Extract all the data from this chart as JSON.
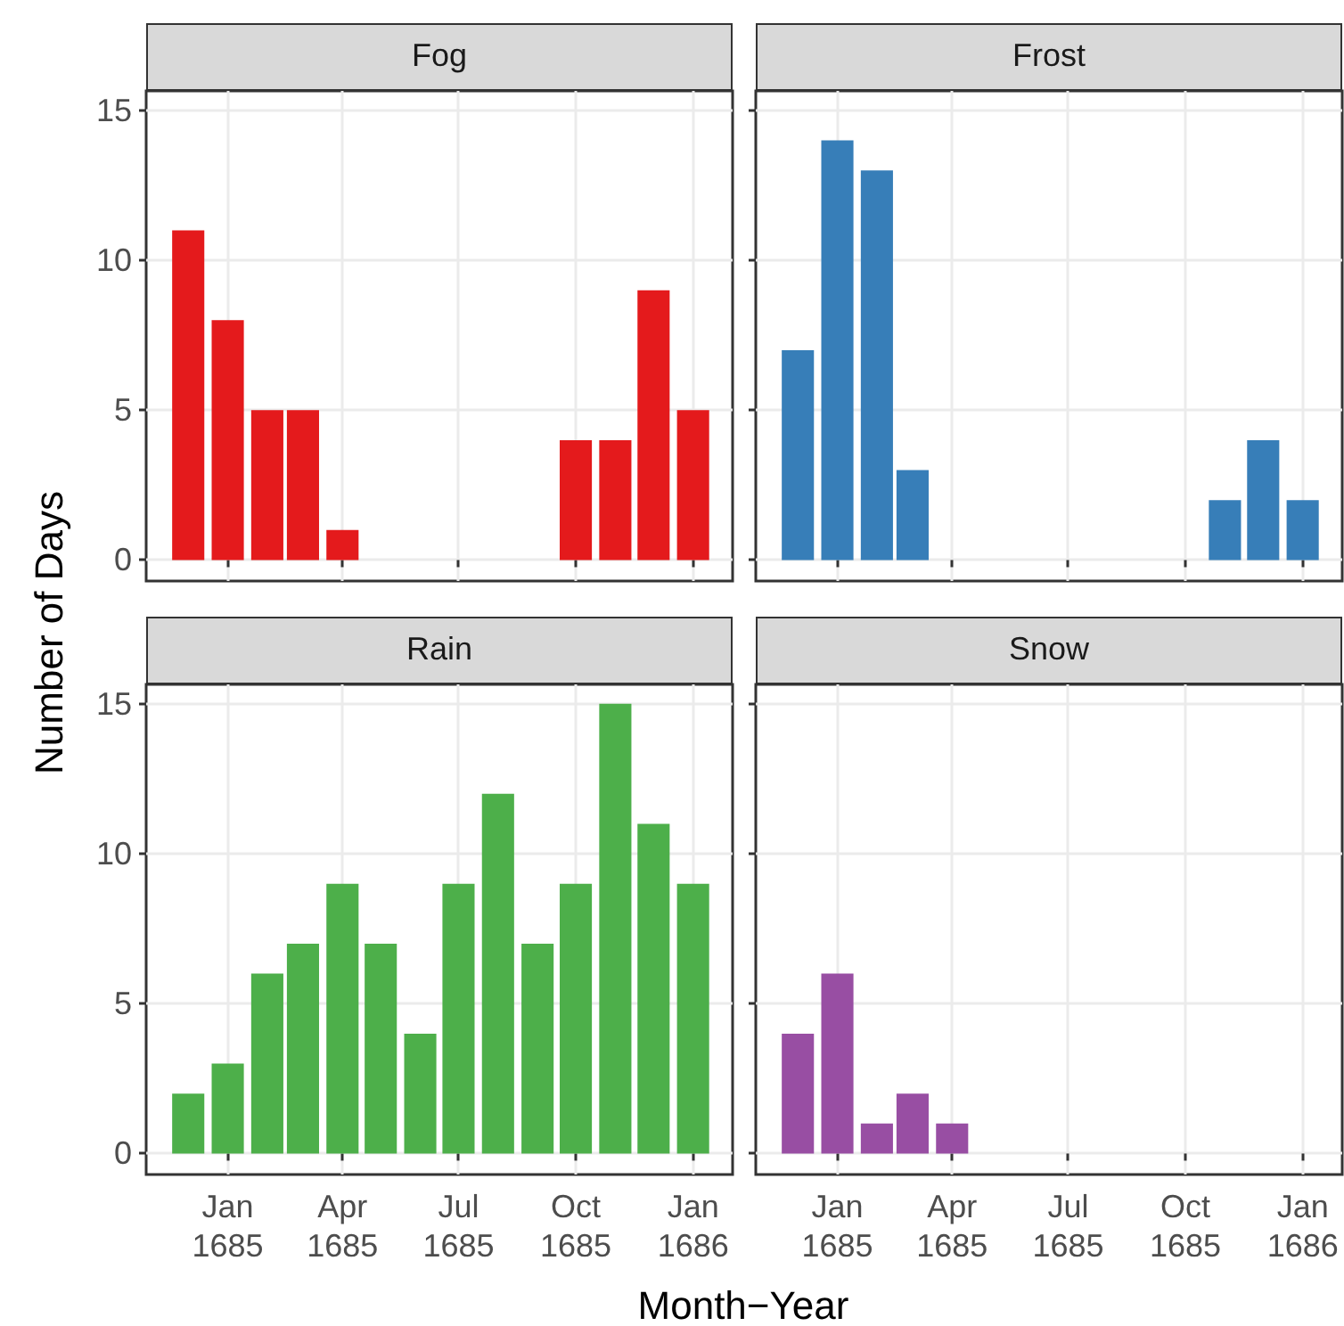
{
  "chart_data": [
    {
      "type": "bar",
      "title": "Fog",
      "xlabel": "Month−Year",
      "ylabel": "Number of Days",
      "x": [
        "1684-12-01",
        "1685-01-01",
        "1685-02-01",
        "1685-03-01",
        "1685-04-01",
        "1685-10-01",
        "1685-11-01",
        "1685-12-01",
        "1686-01-01"
      ],
      "values": [
        11,
        8,
        5,
        5,
        1,
        4,
        4,
        9,
        5
      ],
      "color": "#e41a1c",
      "xlim": [
        "1684-10-29",
        "1686-02-01"
      ],
      "xticks": [
        {
          "value": "1685-01-01",
          "label": null
        },
        {
          "value": "1685-04-01",
          "label": null
        },
        {
          "value": "1685-07-01",
          "label": null
        },
        {
          "value": "1685-10-01",
          "label": null
        },
        {
          "value": "1686-01-01",
          "label": null
        }
      ],
      "ylim": [
        -0.7,
        15.65
      ],
      "yticks": [
        0,
        5,
        10,
        15
      ],
      "grid": true,
      "tick_labels": "y"
    },
    {
      "type": "bar",
      "title": "Frost",
      "x": [
        "1684-12-01",
        "1685-01-01",
        "1685-02-01",
        "1685-03-01",
        "1685-11-01",
        "1685-12-01",
        "1686-01-01"
      ],
      "values": [
        7,
        14,
        13,
        3,
        2,
        4,
        2
      ],
      "color": "#377eb8",
      "xlim": [
        "1684-10-29",
        "1686-02-01"
      ],
      "xticks": [
        {
          "value": "1685-01-01",
          "label": null
        },
        {
          "value": "1685-04-01",
          "label": null
        },
        {
          "value": "1685-07-01",
          "label": null
        },
        {
          "value": "1685-10-01",
          "label": null
        },
        {
          "value": "1686-01-01",
          "label": null
        }
      ],
      "ylim": [
        -0.7,
        15.65
      ],
      "yticks": [
        0,
        5,
        10,
        15
      ],
      "grid": true,
      "tick_labels": false
    },
    {
      "type": "bar",
      "title": "Rain",
      "x": [
        "1684-12-01",
        "1685-01-01",
        "1685-02-01",
        "1685-03-01",
        "1685-04-01",
        "1685-05-01",
        "1685-06-01",
        "1685-07-01",
        "1685-08-01",
        "1685-09-01",
        "1685-10-01",
        "1685-11-01",
        "1685-12-01",
        "1686-01-01"
      ],
      "values": [
        2,
        3,
        6,
        7,
        9,
        7,
        4,
        9,
        12,
        7,
        9,
        15,
        11,
        9
      ],
      "color": "#4daf4a",
      "xlim": [
        "1684-10-29",
        "1686-02-01"
      ],
      "xticks": [
        {
          "value": "1685-01-01",
          "label": "Jan\n1685"
        },
        {
          "value": "1685-04-01",
          "label": "Apr\n1685"
        },
        {
          "value": "1685-07-01",
          "label": "Jul\n1685"
        },
        {
          "value": "1685-10-01",
          "label": "Oct\n1685"
        },
        {
          "value": "1686-01-01",
          "label": "Jan\n1686"
        }
      ],
      "ylim": [
        -0.7,
        15.65
      ],
      "yticks": [
        0,
        5,
        10,
        15
      ],
      "grid": true
    },
    {
      "type": "bar",
      "title": "Snow",
      "x": [
        "1684-12-01",
        "1685-01-01",
        "1685-02-01",
        "1685-03-01",
        "1685-04-01"
      ],
      "values": [
        4,
        6,
        1,
        2,
        1
      ],
      "color": "#984ea3",
      "xlim": [
        "1684-10-29",
        "1686-02-01"
      ],
      "xticks": [
        {
          "value": "1685-01-01",
          "label": "Jan\n1685"
        },
        {
          "value": "1685-04-01",
          "label": "Apr\n1685"
        },
        {
          "value": "1685-07-01",
          "label": "Jul\n1685"
        },
        {
          "value": "1685-10-01",
          "label": "Oct\n1685"
        },
        {
          "value": "1686-01-01",
          "label": "Jan\n1686"
        }
      ],
      "ylim": [
        -0.7,
        15.65
      ],
      "yticks": [
        0,
        5,
        10,
        15
      ],
      "grid": true,
      "tick_labels": "x"
    }
  ]
}
